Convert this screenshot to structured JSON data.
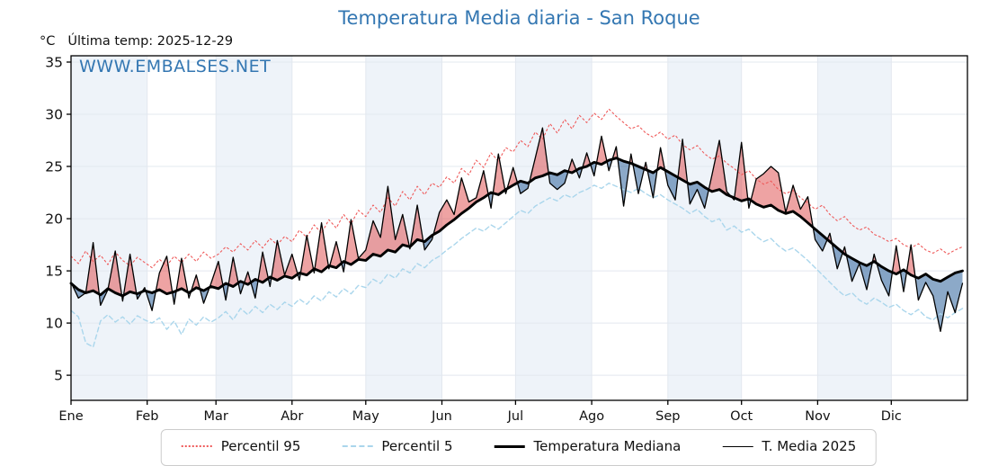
{
  "header": {
    "title": "Temperatura Media diaria - San Roque",
    "unit_label": "°C",
    "last_temp_label": "Última temp: 2025-12-29",
    "watermark": "WWW.EMBALSES.NET"
  },
  "colors": {
    "title": "#3477b2",
    "watermark": "#3477b2",
    "band": "#eef3f9",
    "grid": "#e3e8ef",
    "axis": "#000000",
    "p95": "#ef5a5a",
    "p5": "#aad6ec",
    "median": "#000000",
    "t2025": "#000000",
    "fill_above": "rgba(222,72,72,0.50)",
    "fill_below": "rgba(56,106,160,0.58)"
  },
  "legend": {
    "items": [
      {
        "label": "Percentil 95"
      },
      {
        "label": "Percentil 5"
      },
      {
        "label": "Temperatura Mediana"
      },
      {
        "label": "T. Media 2025"
      }
    ]
  },
  "chart_data": {
    "type": "line",
    "title": "Temperatura Media diaria - San Roque",
    "xlabel": "",
    "ylabel": "°C",
    "note": "Última temp: 2025-12-29",
    "ylim": [
      2.6,
      35.6
    ],
    "yticks": [
      5,
      10,
      15,
      20,
      25,
      30,
      35
    ],
    "grid": true,
    "legend_position": "bottom",
    "x_unit": "day_of_year",
    "days_in_year": 365,
    "month_labels": [
      "Ene",
      "Feb",
      "Mar",
      "Abr",
      "May",
      "Jun",
      "Jul",
      "Ago",
      "Sep",
      "Oct",
      "Nov",
      "Dic"
    ],
    "month_start_days": [
      0,
      31,
      59,
      90,
      120,
      151,
      181,
      212,
      243,
      273,
      304,
      334
    ],
    "x": [
      0,
      3,
      6,
      9,
      12,
      15,
      18,
      21,
      24,
      27,
      30,
      33,
      36,
      39,
      42,
      45,
      48,
      51,
      54,
      57,
      60,
      63,
      66,
      69,
      72,
      75,
      78,
      81,
      84,
      87,
      90,
      93,
      96,
      99,
      102,
      105,
      108,
      111,
      114,
      117,
      120,
      123,
      126,
      129,
      132,
      135,
      138,
      141,
      144,
      147,
      150,
      153,
      156,
      159,
      162,
      165,
      168,
      171,
      174,
      177,
      180,
      183,
      186,
      189,
      192,
      195,
      198,
      201,
      204,
      207,
      210,
      213,
      216,
      219,
      222,
      225,
      228,
      231,
      234,
      237,
      240,
      243,
      246,
      249,
      252,
      255,
      258,
      261,
      264,
      267,
      270,
      273,
      276,
      279,
      282,
      285,
      288,
      291,
      294,
      297,
      300,
      303,
      306,
      309,
      312,
      315,
      318,
      321,
      324,
      327,
      330,
      333,
      336,
      339,
      342,
      345,
      348,
      351,
      354,
      357,
      360,
      363
    ],
    "series": [
      {
        "id": "p95",
        "name": "Percentil 95",
        "style": "dotted",
        "dash": "2 3",
        "width": 1.1,
        "values": [
          16.4,
          15.7,
          16.9,
          15.9,
          16.5,
          15.6,
          16.8,
          16.0,
          15.5,
          16.3,
          15.8,
          15.3,
          16.1,
          15.5,
          16.4,
          15.8,
          16.6,
          15.9,
          16.8,
          16.2,
          16.6,
          17.3,
          16.8,
          17.6,
          17.0,
          17.9,
          17.2,
          18.1,
          17.5,
          18.3,
          17.8,
          18.9,
          18.2,
          19.4,
          18.6,
          19.9,
          19.1,
          20.4,
          19.5,
          20.8,
          20.2,
          21.3,
          20.6,
          22.0,
          21.2,
          22.6,
          21.8,
          23.1,
          22.3,
          23.4,
          23.0,
          24.0,
          23.4,
          24.8,
          24.2,
          25.6,
          24.9,
          26.3,
          25.5,
          26.8,
          26.4,
          27.5,
          26.9,
          28.3,
          27.6,
          29.1,
          28.2,
          29.5,
          28.6,
          29.9,
          29.2,
          30.1,
          29.5,
          30.5,
          29.8,
          29.2,
          28.6,
          28.9,
          28.2,
          27.8,
          28.3,
          27.6,
          28.0,
          27.1,
          26.6,
          27.0,
          26.2,
          25.7,
          26.0,
          25.3,
          24.8,
          24.2,
          24.6,
          23.8,
          23.3,
          23.6,
          22.8,
          22.4,
          22.7,
          22.0,
          21.5,
          20.9,
          21.3,
          20.4,
          19.8,
          20.2,
          19.4,
          18.9,
          19.2,
          18.5,
          18.2,
          17.8,
          18.1,
          17.5,
          17.2,
          17.6,
          17.0,
          16.7,
          17.1,
          16.6,
          17.0,
          17.3
        ]
      },
      {
        "id": "p5",
        "name": "Percentil 5",
        "style": "dashed",
        "dash": "5 3.5",
        "width": 1.4,
        "values": [
          11.2,
          10.6,
          8.1,
          7.7,
          10.2,
          10.8,
          10.1,
          10.6,
          9.9,
          10.7,
          10.3,
          10.0,
          10.5,
          9.4,
          10.2,
          8.9,
          10.4,
          9.8,
          10.6,
          10.1,
          10.5,
          11.1,
          10.3,
          11.4,
          10.8,
          11.6,
          11.0,
          11.8,
          11.3,
          12.0,
          11.6,
          12.3,
          11.8,
          12.6,
          12.1,
          13.0,
          12.5,
          13.3,
          12.8,
          13.6,
          13.4,
          14.2,
          13.8,
          14.7,
          14.3,
          15.2,
          14.8,
          15.7,
          15.3,
          16.0,
          16.4,
          17.0,
          17.5,
          18.1,
          18.6,
          19.1,
          18.8,
          19.4,
          19.0,
          19.6,
          20.2,
          20.8,
          20.5,
          21.2,
          21.6,
          22.0,
          21.7,
          22.3,
          22.0,
          22.5,
          22.8,
          23.2,
          22.9,
          23.4,
          23.1,
          22.8,
          22.5,
          22.9,
          22.4,
          22.0,
          22.3,
          21.8,
          21.4,
          21.0,
          20.5,
          20.9,
          20.2,
          19.7,
          20.0,
          18.9,
          19.3,
          18.7,
          19.0,
          18.3,
          17.8,
          18.1,
          17.4,
          16.9,
          17.2,
          16.6,
          16.0,
          15.3,
          14.6,
          13.9,
          13.2,
          12.6,
          12.9,
          12.2,
          11.8,
          12.4,
          12.0,
          11.5,
          11.8,
          11.2,
          10.8,
          11.3,
          10.6,
          10.3,
          10.9,
          10.5,
          11.0,
          11.4
        ]
      },
      {
        "id": "median",
        "name": "Temperatura Mediana",
        "style": "solid",
        "dash": "",
        "width": 2.9,
        "values": [
          13.8,
          13.2,
          12.9,
          13.1,
          12.7,
          13.3,
          12.9,
          12.6,
          13.0,
          12.8,
          13.1,
          12.9,
          13.2,
          12.8,
          13.0,
          13.3,
          12.9,
          13.4,
          13.1,
          13.5,
          13.3,
          13.8,
          13.5,
          14.0,
          13.7,
          14.2,
          13.9,
          14.4,
          14.1,
          14.5,
          14.3,
          14.8,
          14.6,
          15.2,
          14.9,
          15.5,
          15.3,
          15.9,
          15.6,
          16.1,
          16.0,
          16.6,
          16.4,
          17.0,
          16.8,
          17.5,
          17.3,
          18.0,
          17.8,
          18.4,
          18.8,
          19.4,
          19.9,
          20.5,
          21.0,
          21.6,
          22.0,
          22.5,
          22.3,
          22.8,
          23.2,
          23.6,
          23.4,
          23.9,
          24.1,
          24.4,
          24.2,
          24.6,
          24.4,
          24.8,
          25.0,
          25.4,
          25.2,
          25.6,
          25.8,
          25.5,
          25.3,
          25.0,
          24.7,
          24.4,
          24.9,
          24.5,
          24.1,
          23.7,
          23.3,
          23.5,
          23.0,
          22.6,
          22.8,
          22.3,
          22.0,
          21.7,
          21.9,
          21.4,
          21.1,
          21.3,
          20.8,
          20.5,
          20.7,
          20.2,
          19.6,
          19.0,
          18.4,
          17.8,
          17.2,
          16.6,
          16.2,
          15.8,
          15.5,
          15.9,
          15.4,
          15.0,
          14.7,
          15.1,
          14.6,
          14.3,
          14.7,
          14.2,
          14.0,
          14.4,
          14.8,
          15.0
        ]
      },
      {
        "id": "t2025",
        "name": "T. Media 2025",
        "style": "solid",
        "dash": "",
        "width": 1.3,
        "values": [
          13.9,
          12.4,
          12.9,
          17.7,
          11.7,
          13.2,
          16.9,
          12.1,
          16.6,
          12.3,
          13.4,
          11.2,
          14.8,
          16.4,
          11.8,
          16.2,
          12.4,
          14.6,
          11.9,
          13.8,
          15.9,
          12.2,
          16.3,
          12.8,
          14.9,
          12.4,
          16.8,
          13.5,
          17.9,
          14.6,
          16.6,
          14.1,
          18.4,
          14.8,
          19.6,
          15.2,
          17.8,
          14.9,
          19.9,
          16.2,
          17.0,
          19.8,
          18.2,
          23.1,
          18.0,
          20.4,
          17.1,
          21.3,
          17.0,
          18.0,
          20.6,
          21.8,
          20.4,
          23.9,
          21.6,
          22.0,
          24.6,
          21.0,
          26.2,
          22.4,
          24.9,
          22.4,
          22.9,
          25.8,
          28.7,
          23.4,
          22.8,
          23.4,
          25.7,
          23.9,
          26.3,
          24.1,
          27.9,
          24.6,
          26.9,
          21.2,
          26.2,
          22.4,
          25.4,
          22.0,
          26.8,
          23.2,
          21.8,
          27.6,
          21.4,
          22.8,
          21.0,
          24.2,
          27.5,
          22.6,
          21.8,
          27.3,
          21.0,
          23.8,
          24.3,
          25.0,
          24.4,
          20.6,
          23.2,
          20.9,
          22.1,
          18.0,
          16.9,
          18.6,
          15.2,
          17.3,
          14.0,
          15.7,
          13.2,
          16.6,
          14.1,
          12.6,
          17.4,
          13.0,
          17.5,
          12.2,
          13.9,
          12.6,
          9.2,
          13.0,
          11.0,
          13.8
        ]
      }
    ],
    "fills": {
      "between": [
        "T. Media 2025",
        "Temperatura Mediana"
      ],
      "above_meaning": "2025 warmer than median",
      "below_meaning": "2025 cooler than median"
    }
  }
}
